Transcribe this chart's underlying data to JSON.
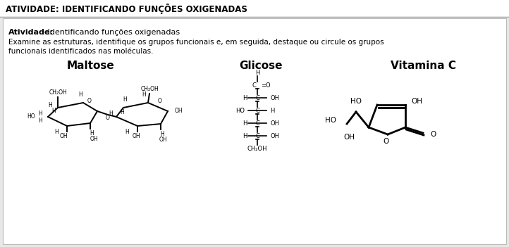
{
  "title": "ATIVIDADE: IDENTIFICANDO FUNÇÕES OXIGENADAS",
  "activity_bold": "Atividade:",
  "activity_rest": " Identificando funções oxigenadas",
  "desc1": "Examine as estruturas, identifique os grupos funcionais e, em seguida, destaque ou circule os grupos",
  "desc2": "funcionais identificados nas moléculas.",
  "mol1_title": "Maltose",
  "mol2_title": "Glicose",
  "mol3_title": "Vitamina C",
  "bg_color": "#ffffff",
  "border_color": "#c0c0c0",
  "text_color": "#000000",
  "title_bar_color": "#ffffff"
}
